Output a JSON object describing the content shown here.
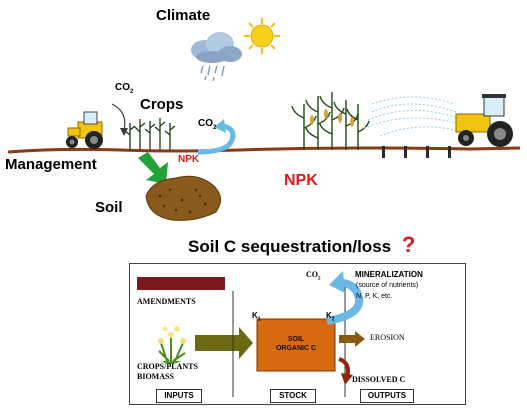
{
  "top": {
    "climate": "Climate",
    "crops": "Crops",
    "management": "Management",
    "soil": "Soil",
    "npk_small": "NPK",
    "npk_large": "NPK",
    "co2_1": "CO",
    "co2_1_sub": "2",
    "co2_2": "CO",
    "co2_2_sub": "2",
    "question": "Soil C sequestration/loss",
    "question_mark": "?"
  },
  "panel": {
    "amendments": "AMENDMENTS",
    "crops_plants": "CROPS/PLANTS",
    "biomass": "BIOMASS",
    "k1": "K",
    "k1_sub": "1",
    "k2": "K",
    "k2_sub": "2",
    "soil_organic_line1": "SOIL",
    "soil_organic_line2": "ORGANIC C",
    "co2": "CO",
    "co2_sub": "2",
    "mineralization": "MINERALIZATION",
    "source_nutrients": "(source of nutrients)",
    "npk_etc": "N, P, K, etc.",
    "erosion": "EROSION",
    "dissolved": "DISSOLVED C",
    "inputs": "INPUTS",
    "stock": "STOCK",
    "outputs": "OUTPUTS"
  },
  "colors": {
    "soil_line": "#8b3a12",
    "arrow_green": "#22a33a",
    "arrow_blue": "#6ab8e8",
    "red": "#e01818",
    "stock_box": "#d66a10",
    "amend_bar": "#7a1a1a",
    "input_arrow": "#6b6a12",
    "tractor": "#f2c40f"
  }
}
